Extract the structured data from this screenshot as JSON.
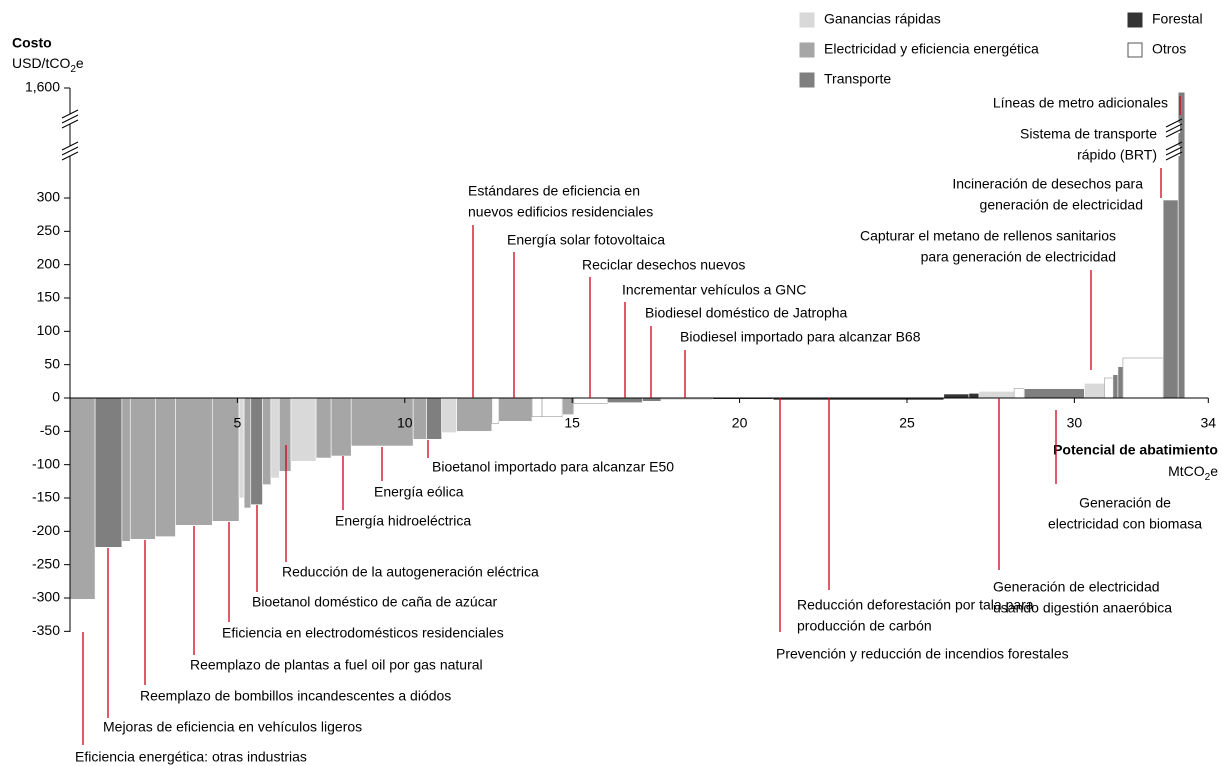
{
  "chart_data": {
    "type": "mac",
    "y_label": "Costo",
    "y_unit": [
      "USD/tCO",
      "2",
      "e"
    ],
    "x_label": "Potencial de abatimiento",
    "x_unit": [
      "MtCO",
      "2",
      "e"
    ],
    "xlim": [
      0,
      34
    ],
    "xticks": [
      5,
      10,
      15,
      20,
      25,
      30,
      34
    ],
    "ylim": [
      -350,
      300
    ],
    "yticks": [
      -350,
      -300,
      -250,
      -200,
      -150,
      -100,
      -50,
      0,
      50,
      100,
      150,
      200,
      250,
      300
    ],
    "ybreak_tick": {
      "value": 1600,
      "label": "1,600"
    },
    "groups": [
      {
        "name": "Ganancias rápidas",
        "color": "#d9d9d9"
      },
      {
        "name": "Electricidad y eficiencia energética",
        "color": "#a6a6a6"
      },
      {
        "name": "Transporte",
        "color": "#7f7f7f"
      },
      {
        "name": "Forestal",
        "color": "#333333"
      },
      {
        "name": "Otros",
        "color": "#ffffff"
      }
    ],
    "bars": {
      "widths": [
        0.75,
        0.8,
        0.25,
        0.75,
        0.6,
        1.1,
        0.8,
        0.15,
        0.2,
        0.35,
        0.25,
        0.25,
        0.35,
        0.75,
        0.45,
        0.6,
        1.85,
        0.4,
        0.45,
        0.45,
        1.05,
        0.2,
        1.0,
        0.3,
        0.6,
        0.35,
        1.0,
        1.05,
        0.55,
        1.55,
        1.8,
        5.1,
        0.75,
        0.3,
        1.05,
        0.3,
        1.8,
        0.6,
        0.25,
        0.15,
        0.15,
        1.2,
        0.45,
        0.2
      ],
      "costs": [
        -302,
        -224,
        -215,
        -212,
        -208,
        -191,
        -185,
        -150,
        -165,
        -160,
        -130,
        -120,
        -110,
        -95,
        -90,
        -87,
        -72,
        -62,
        -62,
        -52,
        -50,
        -38,
        -35,
        -28,
        -28,
        -25,
        -8,
        -7,
        -5,
        -1,
        -2,
        -3,
        6,
        7,
        10,
        14,
        14,
        22,
        30,
        35,
        47,
        60,
        297,
        1550
      ],
      "group": [
        1,
        2,
        1,
        1,
        1,
        1,
        1,
        0,
        1,
        2,
        1,
        0,
        1,
        0,
        1,
        1,
        1,
        1,
        2,
        0,
        1,
        4,
        1,
        4,
        4,
        1,
        4,
        2,
        2,
        4,
        3,
        3,
        3,
        3,
        0,
        4,
        2,
        0,
        4,
        2,
        2,
        4,
        2,
        2
      ]
    },
    "annotations": [
      {
        "lines": [
          "Eficiencia energética: otras industrias"
        ]
      },
      {
        "lines": [
          "Mejoras de eficiencia en vehículos ligeros"
        ]
      },
      {
        "lines": [
          "Reemplazo de bombillos incandescentes a diódos"
        ]
      },
      {
        "lines": [
          "Reemplazo de plantas a fuel oil por gas natural"
        ]
      },
      {
        "lines": [
          "Eficiencia en electrodomésticos residenciales"
        ]
      },
      {
        "lines": [
          "Bioetanol doméstico de caña de azúcar"
        ]
      },
      {
        "lines": [
          "Reducción de la autogeneración eléctrica"
        ]
      },
      {
        "lines": [
          "Energía hidroeléctrica"
        ]
      },
      {
        "lines": [
          "Energía eólica"
        ]
      },
      {
        "lines": [
          "Bioetanol importado para alcanzar E50"
        ]
      },
      {
        "lines": [
          "Estándares de eficiencia en",
          "nuevos edificios residenciales"
        ]
      },
      {
        "lines": [
          "Energía solar fotovoltaica"
        ]
      },
      {
        "lines": [
          "Reciclar desechos nuevos"
        ]
      },
      {
        "lines": [
          "Incrementar vehículos a GNC"
        ]
      },
      {
        "lines": [
          "Biodiesel doméstico de Jatropha"
        ]
      },
      {
        "lines": [
          "Biodiesel importado para alcanzar B68"
        ]
      },
      {
        "lines": [
          "Prevención y reducción de incendios forestales"
        ]
      },
      {
        "lines": [
          "Reducción deforestación por tala para",
          "producción de carbón"
        ]
      },
      {
        "lines": [
          "Generación de electricidad",
          "usando digestión anaeróbica"
        ]
      },
      {
        "lines": [
          "Generación de",
          "electricidad con biomasa"
        ]
      },
      {
        "lines": [
          "Capturar el metano de rellenos sanitarios",
          "para generación de electricidad"
        ]
      },
      {
        "lines": [
          "Incineración de desechos para",
          "generación de electricidad"
        ]
      },
      {
        "lines": [
          "Sistema de transporte",
          "rápido (BRT)"
        ]
      },
      {
        "lines": [
          "Líneas de metro adicionales"
        ]
      }
    ]
  }
}
